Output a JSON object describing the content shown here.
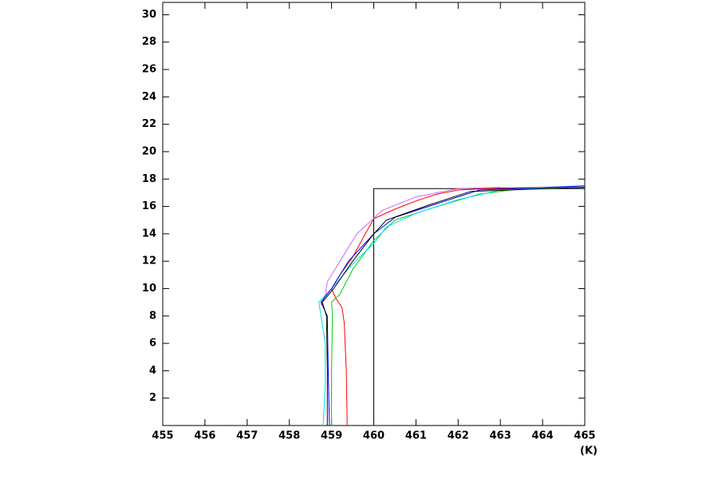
{
  "chart_data": {
    "type": "line",
    "xlabel": "(K)",
    "xlim": [
      455,
      465
    ],
    "ylim": [
      0,
      30.9
    ],
    "xticks": [
      455,
      456,
      457,
      458,
      459,
      460,
      461,
      462,
      463,
      464,
      465
    ],
    "yticks": [
      2,
      4,
      6,
      8,
      10,
      12,
      14,
      16,
      18,
      20,
      22,
      24,
      26,
      28,
      30
    ],
    "series": [
      {
        "color": "#000000",
        "x": [
          460,
          460,
          465
        ],
        "values": [
          0,
          17.3,
          17.3
        ]
      },
      {
        "color": "#ff0000",
        "x": [
          459.37,
          459.35,
          459.3,
          459.25,
          459.1,
          459.0,
          459.2,
          459.5,
          459.8,
          460.0,
          460.5,
          461.0,
          461.5,
          462.0,
          463.0,
          465.0
        ],
        "values": [
          0,
          4,
          7.5,
          8.6,
          9.3,
          10,
          11,
          12.3,
          14,
          15.1,
          15.8,
          16.4,
          16.9,
          17.2,
          17.35,
          17.4
        ]
      },
      {
        "color": "#00d000",
        "x": [
          459.0,
          459.0,
          459.02,
          459.0,
          459.2,
          459.5,
          460.0,
          460.5,
          461.5,
          462.5,
          463.5,
          465.0
        ],
        "values": [
          0,
          4,
          8,
          9,
          9.6,
          11.4,
          13.5,
          15,
          16,
          16.9,
          17.3,
          17.4
        ]
      },
      {
        "color": "#00e0e0",
        "x": [
          458.8,
          458.85,
          458.85,
          458.7,
          459.0,
          459.5,
          460.0,
          460.3,
          461.0,
          462.0,
          463.0,
          465.0
        ],
        "values": [
          0,
          3,
          6,
          9,
          10,
          11.8,
          13.3,
          14.5,
          15.5,
          16.5,
          17.2,
          17.5
        ]
      },
      {
        "color": "#cc66ff",
        "x": [
          458.75,
          458.85,
          458.9,
          459.2,
          459.6,
          460.2,
          461.0,
          462.0,
          463.0
        ],
        "values": [
          8.8,
          9.5,
          10.5,
          12,
          14,
          15.7,
          16.7,
          17.3,
          17.4
        ]
      },
      {
        "color": "#0000ff",
        "x": [
          458.95,
          458.92,
          458.9,
          458.75,
          459.0,
          459.4,
          460.0,
          460.5,
          461.5,
          462.5,
          465.0
        ],
        "values": [
          0,
          4,
          8,
          9,
          10,
          12,
          14,
          15.2,
          16.2,
          17.2,
          17.5
        ]
      },
      {
        "color": "#000000",
        "x": [
          458.9,
          458.9,
          458.88,
          458.78,
          459.05,
          459.5,
          460.0,
          460.3,
          461.3,
          462.3,
          465.0
        ],
        "values": [
          0,
          4,
          8,
          9,
          10,
          12,
          14,
          15,
          16.1,
          17.1,
          17.4
        ]
      }
    ]
  }
}
